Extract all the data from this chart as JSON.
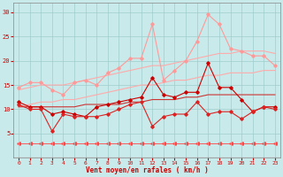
{
  "xlabel": "Vent moyen/en rafales ( km/h )",
  "xlim": [
    -0.5,
    23.5
  ],
  "ylim": [
    0,
    32
  ],
  "yticks": [
    5,
    10,
    15,
    20,
    25,
    30
  ],
  "xticks": [
    0,
    1,
    2,
    3,
    4,
    5,
    6,
    7,
    8,
    9,
    10,
    11,
    12,
    13,
    14,
    15,
    16,
    17,
    18,
    19,
    20,
    21,
    22,
    23
  ],
  "bg_color": "#c8eaea",
  "grid_color": "#a0cccc",
  "series": [
    {
      "x": [
        0,
        1,
        2,
        3,
        4,
        5,
        6,
        7,
        8,
        9,
        10,
        11,
        12,
        13,
        14,
        15,
        16,
        17,
        18,
        19,
        20,
        21,
        22,
        23
      ],
      "y": [
        14.5,
        15.5,
        15.5,
        14.0,
        13.0,
        15.5,
        16.0,
        15.0,
        17.5,
        18.5,
        20.5,
        20.5,
        27.5,
        16.0,
        18.0,
        20.0,
        24.0,
        29.5,
        27.5,
        22.5,
        22.0,
        21.0,
        21.0,
        19.0
      ],
      "color": "#ff9999",
      "linewidth": 0.8,
      "marker": "D",
      "markersize": 1.8,
      "zorder": 3
    },
    {
      "x": [
        0,
        1,
        2,
        3,
        4,
        5,
        6,
        7,
        8,
        9,
        10,
        11,
        12,
        13,
        14,
        15,
        16,
        17,
        18,
        19,
        20,
        21,
        22,
        23
      ],
      "y": [
        14.0,
        14.5,
        15.0,
        15.0,
        15.0,
        15.5,
        16.0,
        16.5,
        17.0,
        17.5,
        18.0,
        18.5,
        19.0,
        19.0,
        19.5,
        20.0,
        20.5,
        21.0,
        21.5,
        21.5,
        22.0,
        22.0,
        22.0,
        21.5
      ],
      "color": "#ffaaaa",
      "linewidth": 0.8,
      "marker": null,
      "markersize": 0,
      "zorder": 2
    },
    {
      "x": [
        0,
        1,
        2,
        3,
        4,
        5,
        6,
        7,
        8,
        9,
        10,
        11,
        12,
        13,
        14,
        15,
        16,
        17,
        18,
        19,
        20,
        21,
        22,
        23
      ],
      "y": [
        10.5,
        11.0,
        11.5,
        11.5,
        12.0,
        12.0,
        12.5,
        13.0,
        13.5,
        14.0,
        14.5,
        15.0,
        15.0,
        15.5,
        16.0,
        16.0,
        16.5,
        17.0,
        17.0,
        17.5,
        17.5,
        17.5,
        18.0,
        18.0
      ],
      "color": "#ffaaaa",
      "linewidth": 0.8,
      "marker": null,
      "markersize": 0,
      "zorder": 2
    },
    {
      "x": [
        0,
        1,
        2,
        3,
        4,
        5,
        6,
        7,
        8,
        9,
        10,
        11,
        12,
        13,
        14,
        15,
        16,
        17,
        18,
        19,
        20,
        21,
        22,
        23
      ],
      "y": [
        11.5,
        10.5,
        10.5,
        9.0,
        9.5,
        9.0,
        8.5,
        10.5,
        11.0,
        11.5,
        12.0,
        12.5,
        16.5,
        13.0,
        12.5,
        13.5,
        13.5,
        19.5,
        14.5,
        14.5,
        12.0,
        9.5,
        10.5,
        10.5
      ],
      "color": "#cc0000",
      "linewidth": 0.8,
      "marker": "D",
      "markersize": 1.8,
      "zorder": 4
    },
    {
      "x": [
        0,
        1,
        2,
        3,
        4,
        5,
        6,
        7,
        8,
        9,
        10,
        11,
        12,
        13,
        14,
        15,
        16,
        17,
        18,
        19,
        20,
        21,
        22,
        23
      ],
      "y": [
        11.0,
        10.0,
        10.0,
        5.5,
        9.0,
        8.5,
        8.5,
        8.5,
        9.0,
        10.0,
        11.0,
        11.5,
        6.5,
        8.5,
        9.0,
        9.0,
        11.5,
        9.0,
        9.5,
        9.5,
        8.0,
        9.5,
        10.5,
        10.0
      ],
      "color": "#dd2222",
      "linewidth": 0.8,
      "marker": "D",
      "markersize": 1.8,
      "zorder": 5
    },
    {
      "x": [
        0,
        1,
        2,
        3,
        4,
        5,
        6,
        7,
        8,
        9,
        10,
        11,
        12,
        13,
        14,
        15,
        16,
        17,
        18,
        19,
        20,
        21,
        22,
        23
      ],
      "y": [
        10.5,
        10.5,
        10.5,
        10.5,
        10.5,
        10.5,
        11.0,
        11.0,
        11.0,
        11.0,
        11.5,
        11.5,
        12.0,
        12.0,
        12.0,
        12.5,
        12.5,
        13.0,
        13.0,
        13.0,
        13.0,
        13.0,
        13.0,
        13.0
      ],
      "color": "#cc3333",
      "linewidth": 0.8,
      "marker": null,
      "markersize": 0,
      "zorder": 3
    },
    {
      "x": [
        0,
        1,
        2,
        3,
        4,
        5,
        6,
        7,
        8,
        9,
        10,
        11,
        12,
        13,
        14,
        15,
        16,
        17,
        18,
        19,
        20,
        21,
        22,
        23
      ],
      "y": [
        3.0,
        3.0,
        3.0,
        3.0,
        3.0,
        3.0,
        3.0,
        3.0,
        3.0,
        3.0,
        3.0,
        3.0,
        3.0,
        3.0,
        3.0,
        3.0,
        3.0,
        3.0,
        3.0,
        3.0,
        3.0,
        3.0,
        3.0,
        3.0
      ],
      "color": "#ff4444",
      "linewidth": 0.6,
      "marker": "<",
      "markersize": 2.5,
      "zorder": 1
    }
  ]
}
